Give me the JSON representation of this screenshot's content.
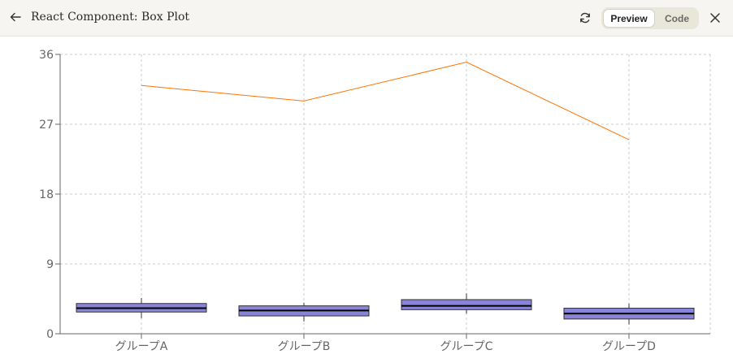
{
  "header": {
    "back_icon": "arrow-left-icon",
    "title": "React Component: Box Plot",
    "refresh_icon": "refresh-icon",
    "tabs": [
      {
        "label": "Preview",
        "active": true
      },
      {
        "label": "Code",
        "active": false
      }
    ],
    "close_icon": "close-icon"
  },
  "chart_data": {
    "type": "boxplot",
    "categories": [
      "グループA",
      "グループB",
      "グループC",
      "グループD"
    ],
    "ylim": [
      0,
      36
    ],
    "yticks": [
      "0",
      "9",
      "18",
      "27",
      "36"
    ],
    "grid": true,
    "box_color": "#8884d8",
    "line_color": "#ff7300",
    "boxes": [
      {
        "min": 2.0,
        "q1": 2.8,
        "median": 3.3,
        "q3": 3.9,
        "max": 4.6
      },
      {
        "min": 1.6,
        "q1": 2.3,
        "median": 3.0,
        "q3": 3.6,
        "max": 4.0
      },
      {
        "min": 2.6,
        "q1": 3.1,
        "median": 3.6,
        "q3": 4.4,
        "max": 5.2
      },
      {
        "min": 1.2,
        "q1": 1.9,
        "median": 2.6,
        "q3": 3.3,
        "max": 3.9
      }
    ],
    "line_values": [
      32,
      30,
      35,
      25
    ]
  }
}
